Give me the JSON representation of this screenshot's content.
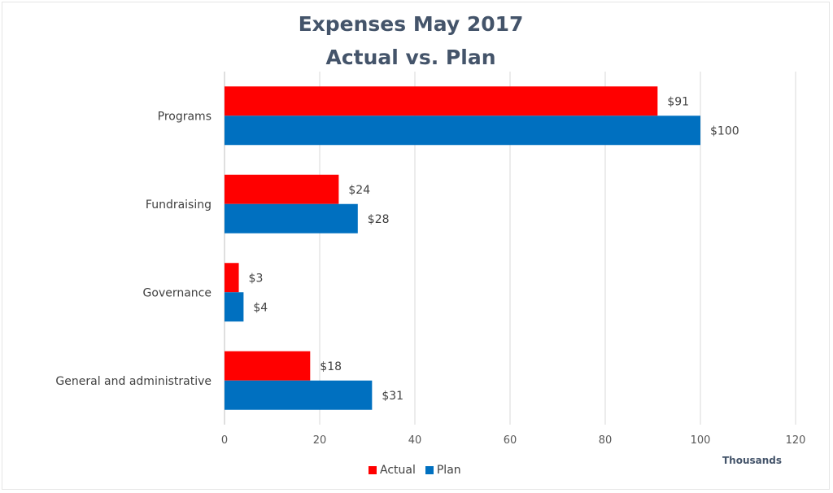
{
  "chart_data": {
    "type": "bar",
    "orientation": "horizontal",
    "title": "Expenses May 2017",
    "subtitle": "Actual vs. Plan",
    "categories": [
      "Programs",
      "Fundraising",
      "Governance",
      "General and administrative"
    ],
    "series": [
      {
        "name": "Actual",
        "color": "#ff0000",
        "values": [
          91,
          24,
          3,
          18
        ],
        "labels": [
          "$91",
          "$24",
          "$3",
          "$18"
        ]
      },
      {
        "name": "Plan",
        "color": "#0070c0",
        "values": [
          100,
          28,
          4,
          31
        ],
        "labels": [
          "$100",
          "$28",
          "$4",
          "$31"
        ]
      }
    ],
    "x_ticks": [
      "0",
      "20",
      "40",
      "60",
      "80",
      "100",
      "120"
    ],
    "xlim": [
      0,
      120
    ],
    "unit_label": "Thousands",
    "grid": true,
    "legend_position": "bottom"
  }
}
